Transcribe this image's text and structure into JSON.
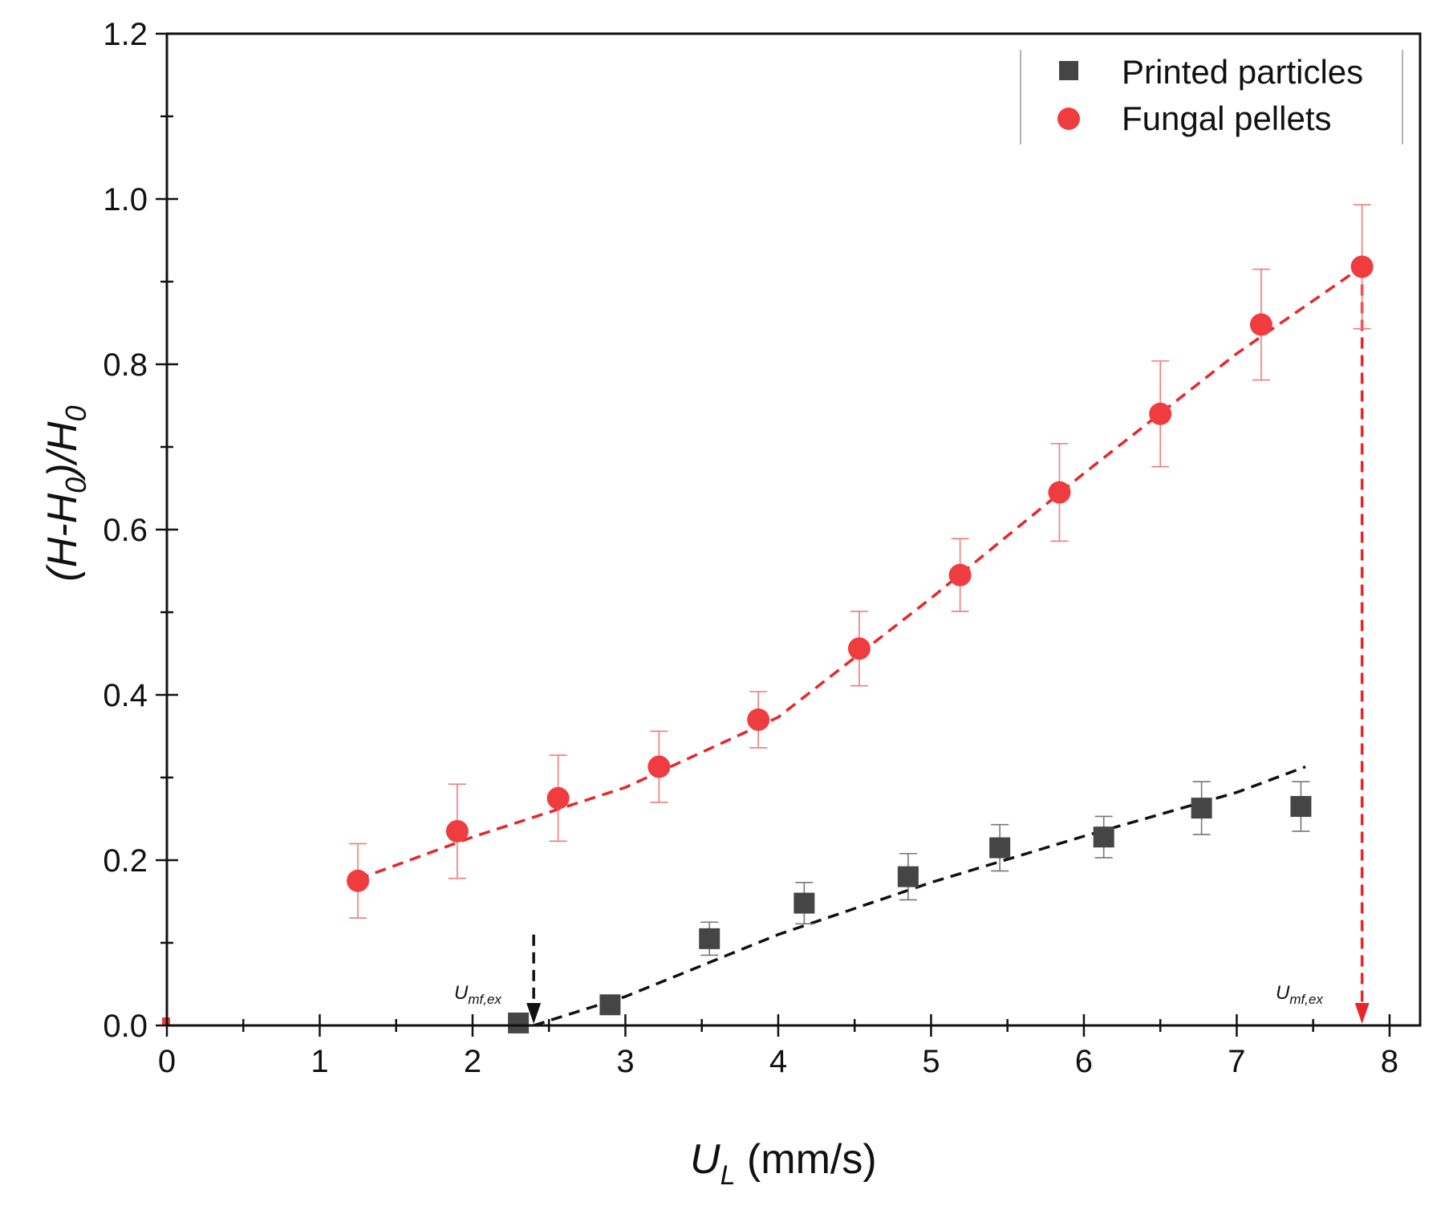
{
  "chart_data": {
    "type": "scatter",
    "xlabel": {
      "main": "U",
      "sub": "L",
      "rest": " (mm/s)"
    },
    "ylabel": {
      "p1": "(H-H",
      "s1": "0",
      "p2": ")/H",
      "s2": "0"
    },
    "xlim": [
      0,
      8.2
    ],
    "ylim": [
      0,
      1.2
    ],
    "xticks": [
      0,
      1,
      2,
      3,
      4,
      5,
      6,
      7,
      8
    ],
    "yticks": [
      0.0,
      0.2,
      0.4,
      0.6,
      0.8,
      1.0,
      1.2
    ],
    "ytick_labels": [
      "0.0",
      "0.2",
      "0.4",
      "0.6",
      "0.8",
      "1.0",
      "1.2"
    ],
    "legend_position": "top-right",
    "series": [
      {
        "name": "Printed particles",
        "marker": "square",
        "color": "#454545",
        "x": [
          2.3,
          2.9,
          3.55,
          4.17,
          4.85,
          5.45,
          6.13,
          6.77,
          7.42
        ],
        "y": [
          0.003,
          0.025,
          0.105,
          0.148,
          0.18,
          0.215,
          0.228,
          0.263,
          0.265
        ],
        "err": [
          0.005,
          0.01,
          0.02,
          0.025,
          0.028,
          0.028,
          0.025,
          0.032,
          0.03
        ],
        "fit": {
          "color": "#111111",
          "x": [
            2.4,
            3.0,
            4.0,
            5.0,
            6.0,
            7.0,
            7.45
          ],
          "y": [
            0.0,
            0.035,
            0.11,
            0.173,
            0.229,
            0.282,
            0.313
          ]
        }
      },
      {
        "name": "Fungal pellets",
        "marker": "circle",
        "color": "#ef3d3f",
        "x": [
          1.25,
          1.9,
          2.56,
          3.22,
          3.87,
          4.53,
          5.19,
          5.84,
          6.5,
          7.16,
          7.82
        ],
        "y": [
          0.175,
          0.235,
          0.275,
          0.313,
          0.37,
          0.456,
          0.545,
          0.645,
          0.74,
          0.848,
          0.918
        ],
        "err": [
          0.045,
          0.057,
          0.052,
          0.043,
          0.034,
          0.045,
          0.044,
          0.059,
          0.064,
          0.067,
          0.075
        ],
        "fit": {
          "color": "#e8262a",
          "x": [
            1.25,
            2.0,
            3.0,
            4.0,
            5.0,
            6.0,
            7.0,
            7.82
          ],
          "y": [
            0.177,
            0.228,
            0.288,
            0.373,
            0.517,
            0.668,
            0.813,
            0.918
          ]
        }
      }
    ],
    "annotations": [
      {
        "text": "U",
        "sub": "mf,ex",
        "x": 2.4,
        "color": "#111111"
      },
      {
        "text": "U",
        "sub": "mf,ex",
        "x": 7.82,
        "color": "#e8262a"
      }
    ]
  }
}
